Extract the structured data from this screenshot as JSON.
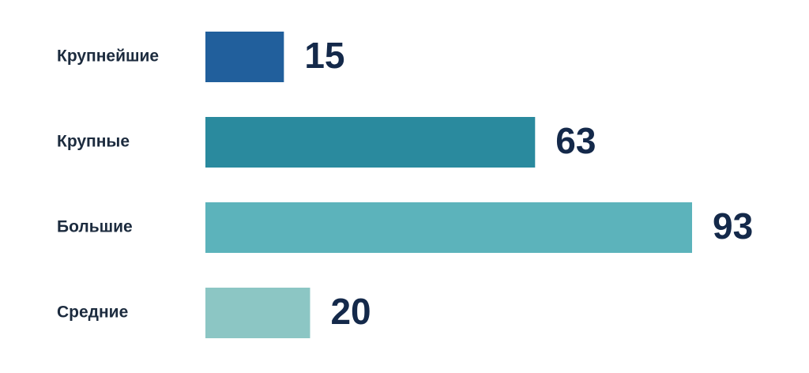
{
  "chart_data": {
    "type": "bar",
    "orientation": "horizontal",
    "categories": [
      "Крупнейшие",
      "Крупные",
      "Большие",
      "Средние"
    ],
    "values": [
      15,
      63,
      93,
      20
    ],
    "colors": [
      "#215f9c",
      "#2a8a9e",
      "#5cb3bb",
      "#8cc6c4"
    ]
  }
}
